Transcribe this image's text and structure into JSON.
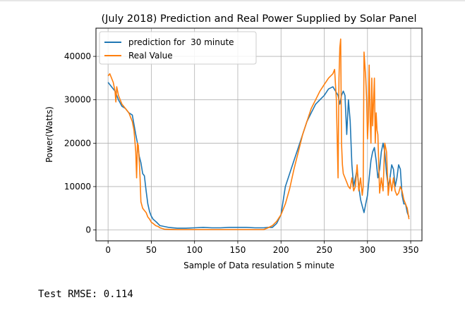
{
  "output": {
    "rmse_text": "Test RMSE: 0.114"
  },
  "chart_data": {
    "type": "line",
    "title": "(July 2018) Prediction and Real Power Supplied by Solar Panel",
    "xlabel": "Sample of Data resulation 5 minute",
    "ylabel": "Power(Watts)",
    "xlim": [
      -14,
      363
    ],
    "ylim": [
      -2500,
      46500
    ],
    "xticks": [
      0,
      50,
      100,
      150,
      200,
      250,
      300,
      350
    ],
    "yticks": [
      0,
      10000,
      20000,
      30000,
      40000
    ],
    "grid": true,
    "legend_position": "top-left",
    "series": [
      {
        "name": "prediction for  30 minute",
        "color": "#1f77b4",
        "x": [
          0,
          4,
          8,
          12,
          16,
          20,
          24,
          28,
          32,
          34,
          36,
          38,
          40,
          42,
          44,
          46,
          48,
          50,
          52,
          56,
          60,
          70,
          80,
          90,
          100,
          110,
          120,
          130,
          140,
          150,
          160,
          170,
          180,
          185,
          190,
          195,
          200,
          205,
          210,
          215,
          220,
          225,
          230,
          235,
          240,
          245,
          250,
          255,
          260,
          263,
          266,
          268,
          270,
          272,
          274,
          276,
          278,
          280,
          282,
          284,
          286,
          288,
          290,
          292,
          294,
          296,
          298,
          300,
          302,
          304,
          306,
          308,
          310,
          312,
          314,
          316,
          318,
          320,
          322,
          324,
          326,
          328,
          330,
          332,
          334,
          336,
          338,
          340,
          342,
          344,
          346,
          348
        ],
        "y": [
          34000,
          33000,
          32000,
          30000,
          28500,
          28000,
          27000,
          26500,
          22000,
          20000,
          17000,
          15500,
          13000,
          12500,
          9000,
          6000,
          4200,
          3200,
          2500,
          1800,
          1000,
          600,
          400,
          400,
          500,
          600,
          500,
          500,
          600,
          600,
          600,
          500,
          500,
          600,
          600,
          1500,
          3500,
          10000,
          13000,
          16000,
          19000,
          22000,
          25000,
          27000,
          29000,
          30000,
          31000,
          32500,
          33000,
          32000,
          31000,
          29000,
          31000,
          32000,
          31000,
          22000,
          30000,
          25000,
          15000,
          10000,
          12000,
          14000,
          10000,
          7000,
          5500,
          4000,
          6000,
          8000,
          12000,
          16000,
          18000,
          19000,
          16000,
          12000,
          14000,
          18000,
          20000,
          18000,
          13000,
          10000,
          12000,
          15000,
          14000,
          10000,
          12000,
          15000,
          14000,
          8000,
          6000,
          6000,
          4000,
          3000
        ]
      },
      {
        "name": "Real Value",
        "color": "#ff7f0e",
        "x": [
          0,
          2,
          4,
          6,
          8,
          9,
          10,
          12,
          14,
          16,
          18,
          20,
          22,
          24,
          26,
          28,
          30,
          32,
          33,
          34,
          35,
          36,
          37,
          38,
          40,
          42,
          44,
          46,
          48,
          50,
          52,
          55,
          58,
          60,
          65,
          70,
          80,
          90,
          100,
          110,
          120,
          130,
          140,
          150,
          160,
          170,
          180,
          185,
          190,
          195,
          200,
          205,
          210,
          215,
          220,
          225,
          230,
          235,
          240,
          245,
          250,
          255,
          260,
          262,
          264,
          266,
          267,
          268,
          269,
          270,
          271,
          272,
          274,
          276,
          278,
          280,
          282,
          284,
          286,
          288,
          290,
          292,
          294,
          295,
          296,
          297,
          298,
          299,
          300,
          301,
          302,
          303,
          304,
          305,
          306,
          308,
          309,
          310,
          311,
          312,
          314,
          316,
          318,
          320,
          322,
          324,
          326,
          328,
          330,
          332,
          334,
          336,
          338,
          340,
          342,
          344,
          346,
          348
        ],
        "y": [
          35500,
          36000,
          35000,
          34000,
          32000,
          29500,
          33000,
          31000,
          30000,
          29000,
          28500,
          28000,
          27500,
          27000,
          26000,
          25000,
          23000,
          18000,
          12000,
          20000,
          19500,
          16000,
          12000,
          6500,
          5000,
          4500,
          4000,
          3000,
          2500,
          1800,
          1500,
          1000,
          800,
          500,
          200,
          150,
          100,
          100,
          100,
          100,
          100,
          100,
          100,
          100,
          100,
          100,
          100,
          500,
          1000,
          2000,
          3500,
          6000,
          9500,
          14000,
          18000,
          22000,
          25000,
          28000,
          30000,
          32000,
          33500,
          35000,
          36000,
          37000,
          30000,
          12000,
          35000,
          42000,
          44000,
          20000,
          15000,
          13000,
          12000,
          11000,
          10000,
          9500,
          12000,
          9000,
          10000,
          15000,
          9000,
          12000,
          8000,
          10000,
          41000,
          38000,
          35000,
          30000,
          21000,
          25000,
          38000,
          26000,
          20000,
          35000,
          24000,
          35000,
          20000,
          27000,
          23000,
          22000,
          8500,
          12000,
          9000,
          20000,
          18000,
          8000,
          12000,
          9000,
          12000,
          9000,
          8000,
          8500,
          10000,
          9000,
          7000,
          6000,
          5000,
          2500
        ]
      }
    ]
  }
}
